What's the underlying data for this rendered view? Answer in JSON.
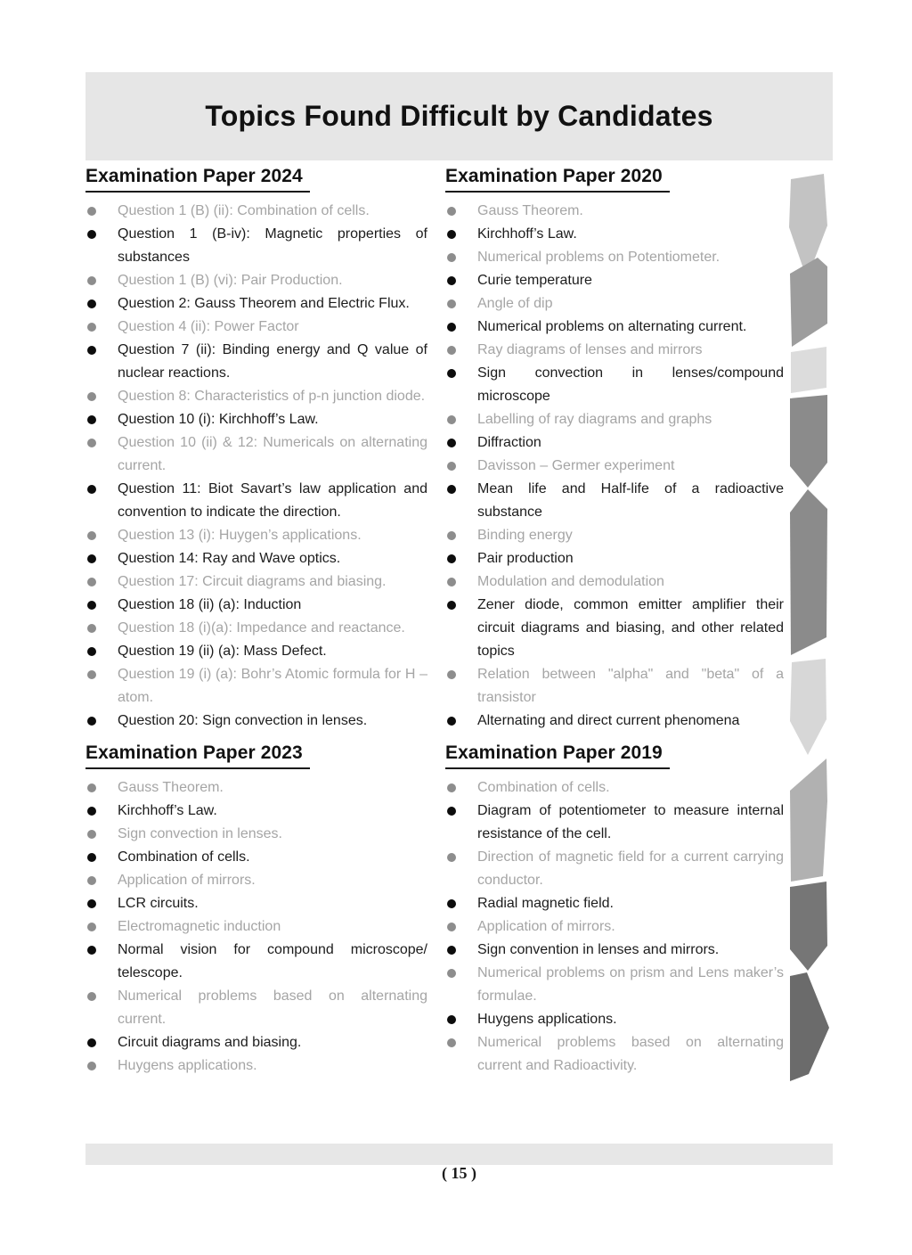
{
  "page": {
    "title": "Topics Found Difficult by Candidates",
    "page_number": "( 15 )"
  },
  "colors": {
    "banner_bg": "#e6e6e6",
    "footer_bar_bg": "#e7e7e7",
    "text_black": "#1c1c1c",
    "text_gray": "#a5a5a5",
    "bullet_black": "#0d0d0d",
    "bullet_gray": "#8d8d8d"
  },
  "ribbon": {
    "segment_colors": [
      "#c3c3c3",
      "#9d9d9d",
      "#dcdcdc",
      "#8b8b8b",
      "#8b8b8b",
      "#d7d7d7",
      "#b1b1b1",
      "#767676",
      "#6b6b6b"
    ]
  },
  "columns": {
    "left": [
      {
        "title": "Examination Paper 2024",
        "items": [
          {
            "tone": "gray",
            "text": "Question 1 (B) (ii): Combination of cells."
          },
          {
            "tone": "black",
            "text": "Question 1 (B-iv): Magnetic properties of substances"
          },
          {
            "tone": "gray",
            "text": "Question 1 (B) (vi): Pair Production."
          },
          {
            "tone": "black",
            "text": "Question 2: Gauss Theorem and Electric Flux."
          },
          {
            "tone": "gray",
            "text": "Question 4 (ii): Power Factor"
          },
          {
            "tone": "black",
            "text": "Question 7 (ii): Binding energy and Q value of nuclear reactions."
          },
          {
            "tone": "gray",
            "text": "Question 8: Characteristics of p-n junction diode."
          },
          {
            "tone": "black",
            "text": "Question 10 (i): Kirchhoff’s Law."
          },
          {
            "tone": "gray",
            "text": "Question 10 (ii) & 12: Numericals on alternating current."
          },
          {
            "tone": "black",
            "text": "Question 11: Biot Savart’s law application and convention to indicate the direction."
          },
          {
            "tone": "gray",
            "text": "Question 13 (i): Huygen’s applications."
          },
          {
            "tone": "black",
            "text": "Question 14: Ray and Wave optics."
          },
          {
            "tone": "gray",
            "text": "Question 17: Circuit diagrams and biasing."
          },
          {
            "tone": "black",
            "text": "Question 18 (ii) (a): Induction"
          },
          {
            "tone": "gray",
            "text": "Question 18 (i)(a): Impedance and reactance."
          },
          {
            "tone": "black",
            "text": "Question 19 (ii) (a): Mass Defect."
          },
          {
            "tone": "gray",
            "text": "Question 19 (i) (a): Bohr’s Atomic formula for H – atom."
          },
          {
            "tone": "black",
            "text": "Question 20: Sign convection in lenses."
          }
        ]
      },
      {
        "title": "Examination Paper 2023",
        "items": [
          {
            "tone": "gray",
            "text": "Gauss Theorem."
          },
          {
            "tone": "black",
            "text": "Kirchhoff’s Law."
          },
          {
            "tone": "gray",
            "text": "Sign convection in lenses."
          },
          {
            "tone": "black",
            "text": "Combination of cells."
          },
          {
            "tone": "gray",
            "text": "Application of mirrors."
          },
          {
            "tone": "black",
            "text": "LCR circuits."
          },
          {
            "tone": "gray",
            "text": "Electromagnetic induction"
          },
          {
            "tone": "black",
            "text": "Normal vision for compound microscope/ telescope."
          },
          {
            "tone": "gray",
            "text": "Numerical problems based on alternating current."
          },
          {
            "tone": "black",
            "text": "Circuit diagrams and biasing."
          },
          {
            "tone": "gray",
            "text": "Huygens applications."
          }
        ]
      }
    ],
    "right": [
      {
        "title": "Examination Paper 2020",
        "items": [
          {
            "tone": "gray",
            "text": "Gauss Theorem."
          },
          {
            "tone": "black",
            "text": "Kirchhoff’s Law."
          },
          {
            "tone": "gray",
            "text": "Numerical problems on Potentiometer."
          },
          {
            "tone": "black",
            "text": "Curie temperature"
          },
          {
            "tone": "gray",
            "text": "Angle of dip"
          },
          {
            "tone": "black",
            "text": "Numerical problems on alternating current."
          },
          {
            "tone": "gray",
            "text": "Ray diagrams of lenses and mirrors"
          },
          {
            "tone": "black",
            "text": "Sign convection in lenses/compound microscope"
          },
          {
            "tone": "gray",
            "text": "Labelling of ray diagrams and graphs"
          },
          {
            "tone": "black",
            "text": "Diffraction"
          },
          {
            "tone": "gray",
            "text": "Davisson – Germer experiment"
          },
          {
            "tone": "black",
            "text": "Mean life and Half-life of a radioactive substance"
          },
          {
            "tone": "gray",
            "text": "Binding energy"
          },
          {
            "tone": "black",
            "text": "Pair production"
          },
          {
            "tone": "gray",
            "text": "Modulation and demodulation"
          },
          {
            "tone": "black",
            "text": "Zener diode, common emitter amplifier their circuit diagrams and biasing, and other related topics"
          },
          {
            "tone": "gray",
            "text": "Relation between \"alpha\" and \"beta\" of a transistor"
          },
          {
            "tone": "black",
            "text": "Alternating and direct current phenomena"
          }
        ]
      },
      {
        "title": "Examination Paper 2019",
        "items": [
          {
            "tone": "gray",
            "text": "Combination of cells."
          },
          {
            "tone": "black",
            "text": "Diagram of potentiometer to measure internal resistance of the cell."
          },
          {
            "tone": "gray",
            "text": "Direction of magnetic field for a current carrying conductor."
          },
          {
            "tone": "black",
            "text": "Radial magnetic field."
          },
          {
            "tone": "gray",
            "text": "Application of mirrors."
          },
          {
            "tone": "black",
            "text": "Sign convention in lenses and mirrors."
          },
          {
            "tone": "gray",
            "text": "Numerical problems on prism and Lens maker’s formulae."
          },
          {
            "tone": "black",
            "text": "Huygens applications."
          },
          {
            "tone": "gray",
            "text": "Numerical problems based on alternating current and Radioactivity."
          }
        ]
      }
    ]
  }
}
